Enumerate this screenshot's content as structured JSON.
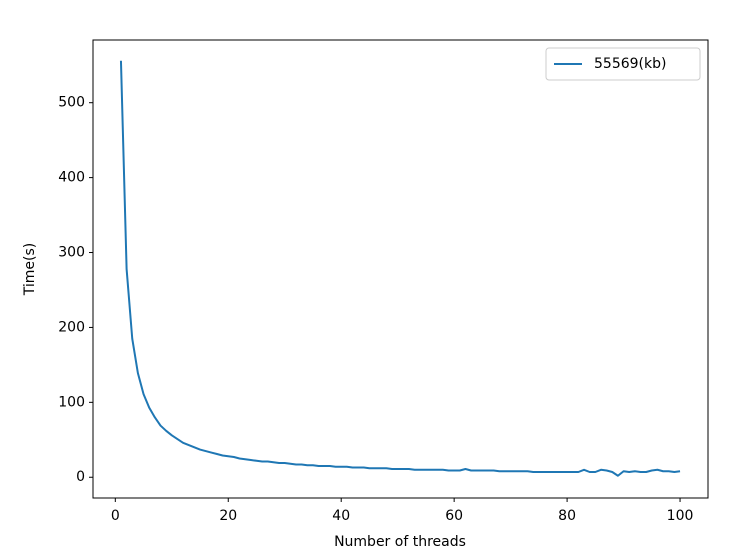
{
  "chart_data": {
    "type": "line",
    "x_label": "Number of threads",
    "y_label": "Time(s)",
    "x": [
      1,
      2,
      3,
      4,
      5,
      6,
      7,
      8,
      9,
      10,
      11,
      12,
      13,
      14,
      15,
      16,
      17,
      18,
      19,
      20,
      21,
      22,
      23,
      24,
      25,
      26,
      27,
      28,
      29,
      30,
      31,
      32,
      33,
      34,
      35,
      36,
      37,
      38,
      39,
      40,
      41,
      42,
      43,
      44,
      45,
      46,
      47,
      48,
      49,
      50,
      51,
      52,
      53,
      54,
      55,
      56,
      57,
      58,
      59,
      60,
      61,
      62,
      63,
      64,
      65,
      66,
      67,
      68,
      69,
      70,
      71,
      72,
      73,
      74,
      75,
      76,
      77,
      78,
      79,
      80,
      81,
      82,
      83,
      84,
      85,
      86,
      87,
      88,
      89,
      90,
      91,
      92,
      93,
      94,
      95,
      96,
      97,
      98,
      99,
      100
    ],
    "series": [
      {
        "name": "55569(kb)",
        "color": "#1f77b4",
        "values": [
          556,
          278,
          185,
          139,
          111,
          93,
          80,
          69,
          62,
          56,
          51,
          46,
          43,
          40,
          37,
          35,
          33,
          31,
          29,
          28,
          27,
          25,
          24,
          23,
          22,
          21,
          21,
          20,
          19,
          19,
          18,
          17,
          17,
          16,
          16,
          15,
          15,
          15,
          14,
          14,
          14,
          13,
          13,
          13,
          12,
          12,
          12,
          12,
          11,
          11,
          11,
          11,
          10,
          10,
          10,
          10,
          10,
          10,
          9,
          9,
          9,
          11,
          9,
          9,
          9,
          9,
          9,
          8,
          8,
          8,
          8,
          8,
          8,
          7,
          7,
          7,
          7,
          7,
          7,
          7,
          7,
          7,
          10,
          7,
          7,
          10,
          9,
          7,
          2,
          8,
          7,
          8,
          7,
          7,
          9,
          10,
          8,
          8,
          7,
          8
        ]
      }
    ],
    "xlim": [
      -3.95,
      104.95
    ],
    "xticks": [
      0,
      20,
      40,
      60,
      80,
      100
    ],
    "ylim": [
      -27.7,
      583.7
    ],
    "yticks": [
      0,
      100,
      200,
      300,
      400,
      500
    ],
    "legend": "upper right"
  }
}
